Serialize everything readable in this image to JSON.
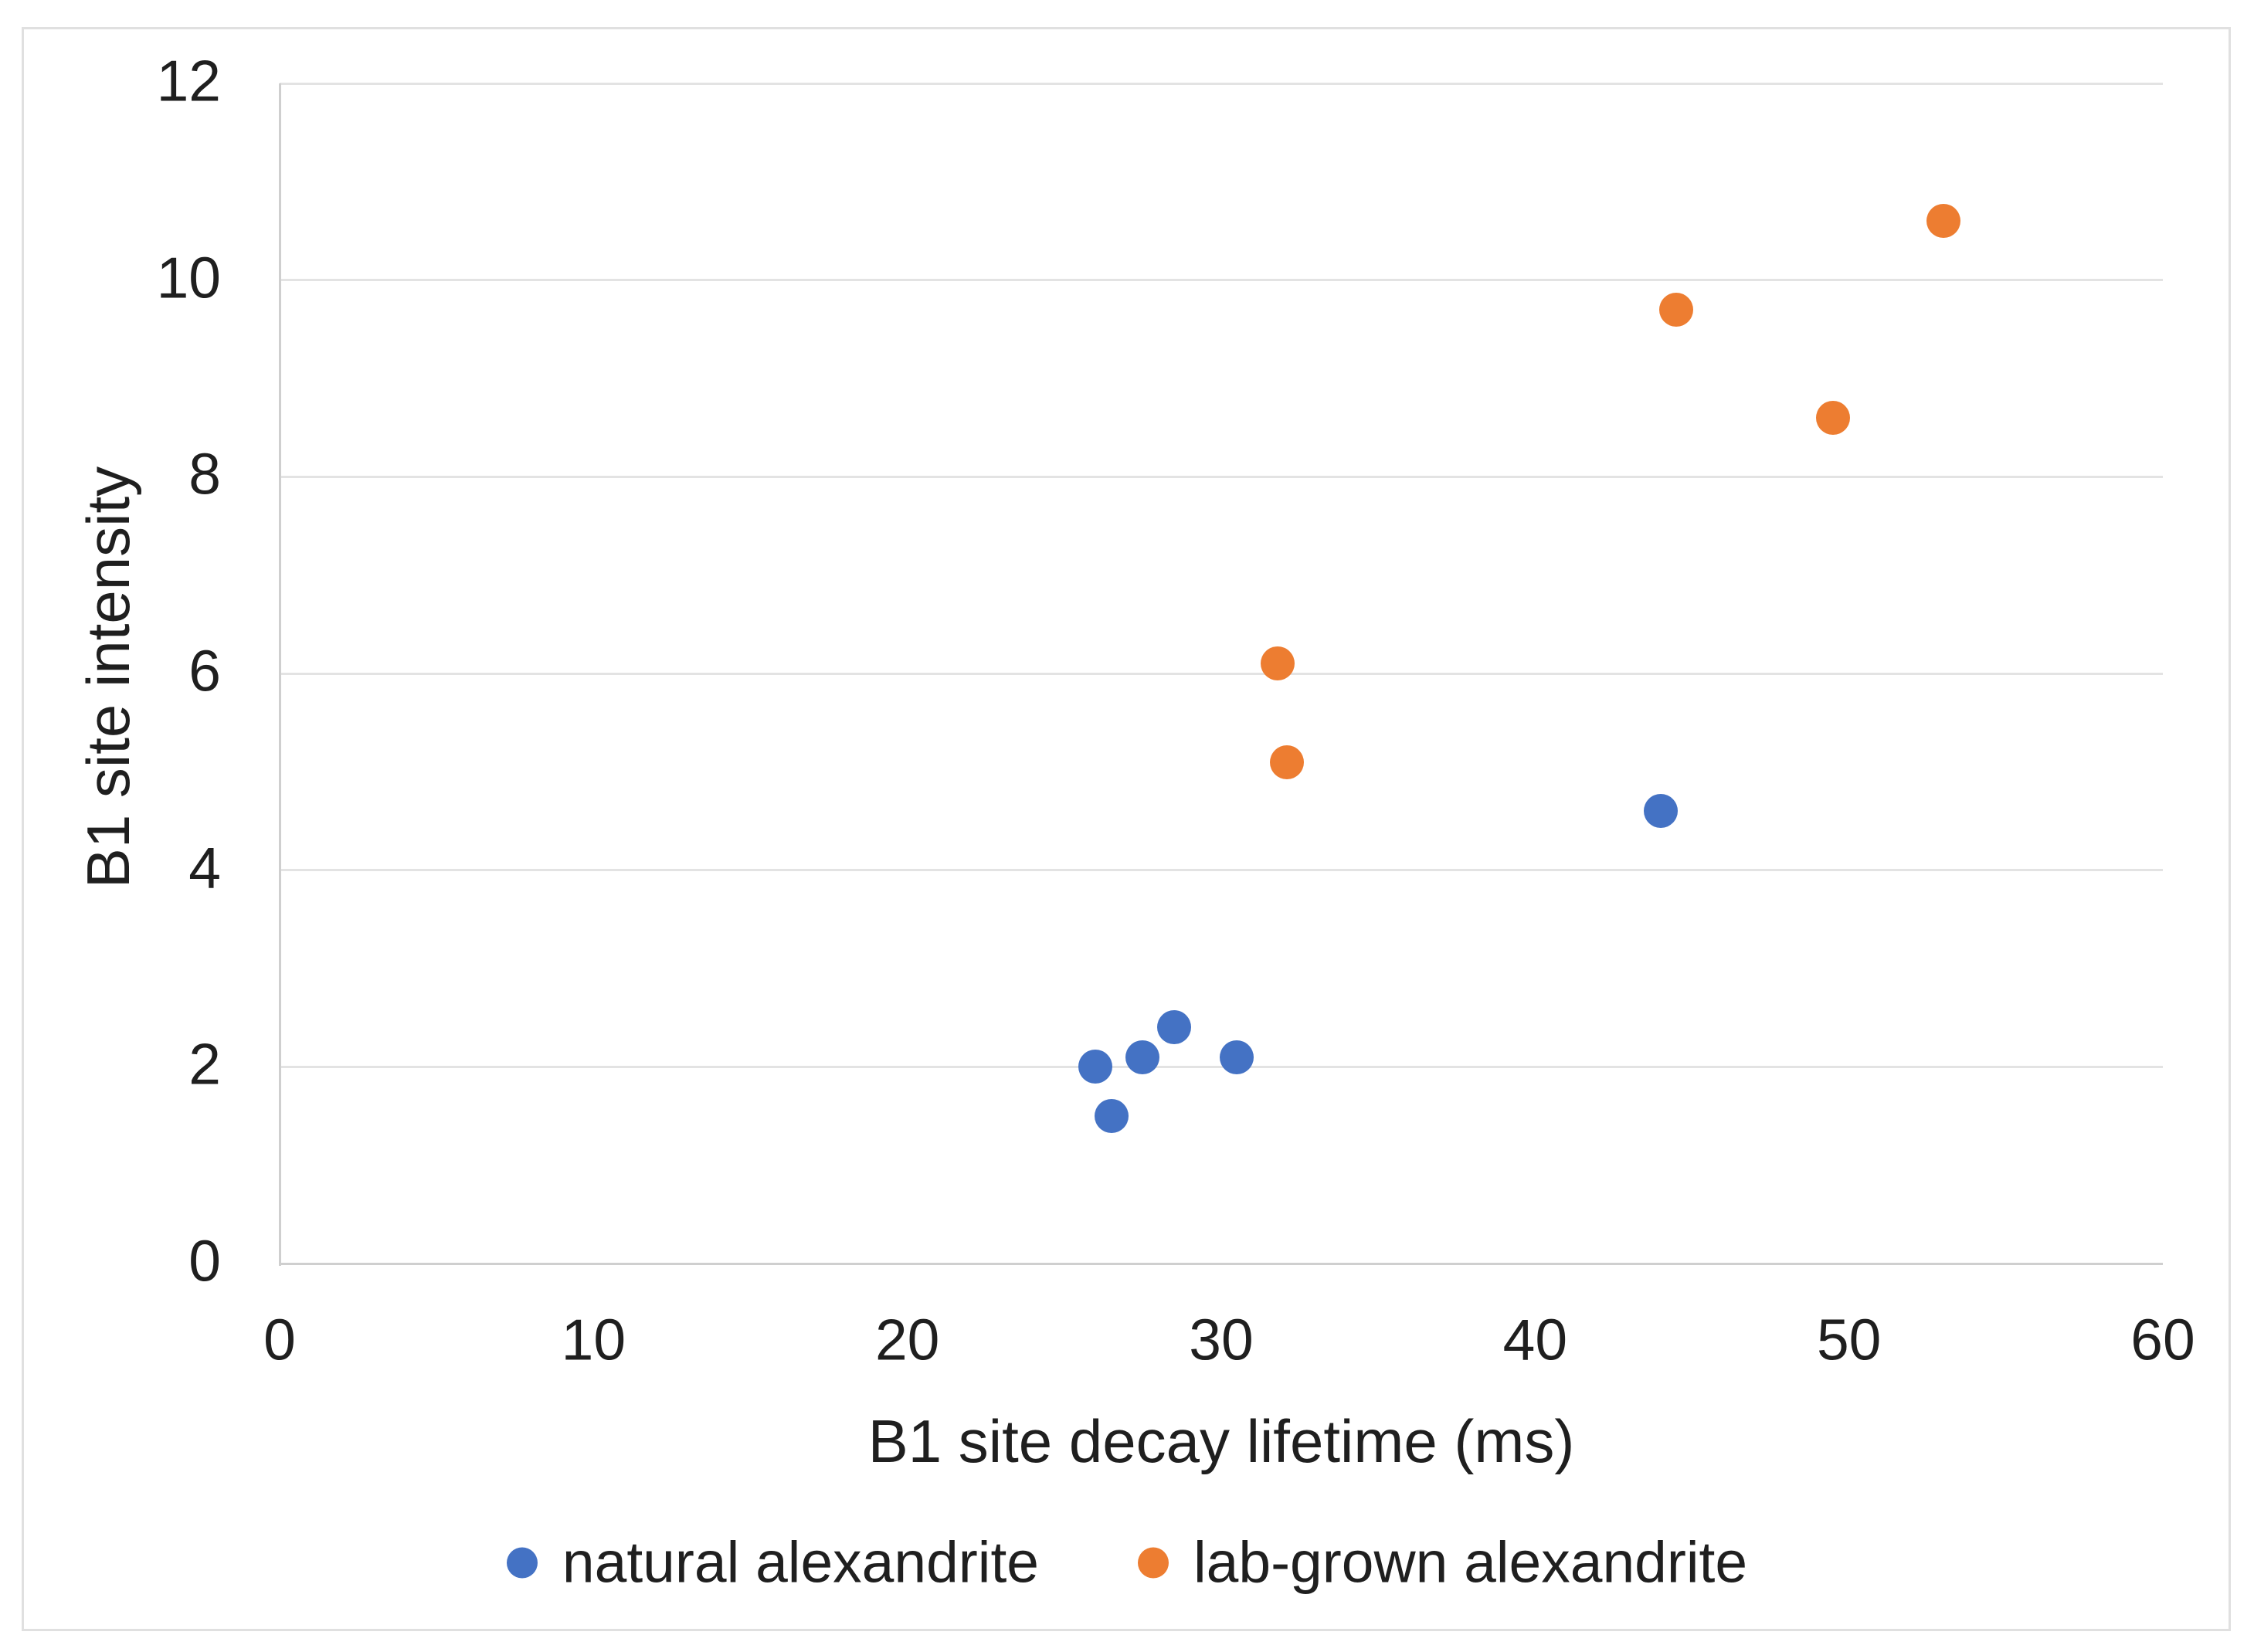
{
  "figure": {
    "background_color": "#ffffff",
    "frame_border_color": "#e0e0e0",
    "gridline_color": "#e3e3e3",
    "axis_line_color": "#cfcfcf",
    "text_color": "#1f1f1f"
  },
  "chart_data": {
    "type": "scatter",
    "title": "",
    "xlabel": "B1 site decay lifetime (ms)",
    "ylabel": "B1 site intensity",
    "xlim": [
      0,
      60
    ],
    "ylim": [
      0,
      12
    ],
    "xticks": [
      0,
      10,
      20,
      30,
      40,
      50,
      60
    ],
    "yticks": [
      0,
      2,
      4,
      6,
      8,
      10,
      12
    ],
    "grid": "horizontal-only",
    "legend_position": "bottom-center",
    "series": [
      {
        "name": "natural alexandrite",
        "color": "#4472C4",
        "points": [
          [
            26,
            2.0
          ],
          [
            26.5,
            1.5
          ],
          [
            27.5,
            2.1
          ],
          [
            28.5,
            2.4
          ],
          [
            30.5,
            2.1
          ],
          [
            44,
            4.6
          ]
        ]
      },
      {
        "name": "lab-grown alexandrite",
        "color": "#ED7D31",
        "points": [
          [
            31.8,
            6.1
          ],
          [
            32.1,
            5.1
          ],
          [
            44.5,
            9.7
          ],
          [
            49.5,
            8.6
          ],
          [
            53,
            10.6
          ]
        ]
      }
    ]
  }
}
